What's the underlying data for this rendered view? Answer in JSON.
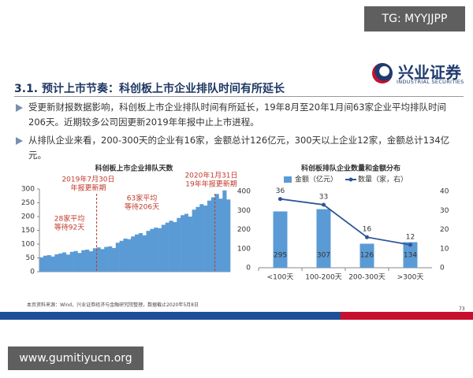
{
  "watermark_top": "TG: MYYJJPP",
  "logo": {
    "name": "兴业证券",
    "subtitle": "INDUSTRIAL SECURITIES"
  },
  "section_title": "3.1. 预计上市节奏：科创板上市企业排队时间有所延长",
  "bullets": [
    "受更新财报数据影响，科创板上市企业排队时间有所延长，19年8月至20年1月间63家企业平均排队时间206天。近期较多公司因更新2019年年报中止上市进程。",
    "从排队企业来看，200-300天的企业有16家，金额总计126亿元，300天以上企业12家，金额总计134亿元。"
  ],
  "chart_data": [
    {
      "type": "bar",
      "title": "科创板上市企业排队天数",
      "color": "#5b9bd5",
      "values": [
        52,
        58,
        60,
        55,
        63,
        66,
        70,
        62,
        72,
        75,
        68,
        78,
        80,
        74,
        85,
        88,
        82,
        90,
        92,
        86,
        105,
        112,
        120,
        118,
        128,
        135,
        140,
        132,
        148,
        155,
        160,
        158,
        170,
        178,
        185,
        180,
        195,
        205,
        210,
        200,
        225,
        235,
        245,
        240,
        258,
        270,
        282,
        265,
        295,
        262
      ],
      "ylim": [
        0,
        300
      ],
      "yticks": [
        0,
        50,
        100,
        150,
        200,
        250,
        300
      ],
      "annotations": [
        {
          "lines": [
            "2019年7月30日",
            "年报更新期"
          ],
          "color": "#c0392b"
        },
        {
          "lines": [
            "2020年1月31日",
            "19年年报更新期"
          ],
          "color": "#c0392b"
        },
        {
          "lines": [
            "63家平均",
            "等待206天"
          ],
          "color": "#c0392b"
        },
        {
          "lines": [
            "28家平均",
            "等待92天"
          ],
          "color": "#c0392b"
        }
      ]
    },
    {
      "type": "combo",
      "title": "科创板排队企业数量和金额分布",
      "categories": [
        "<100天",
        "100-200天",
        "200-300天",
        ">300天"
      ],
      "series": [
        {
          "name": "金额（亿元）",
          "color": "#5b9bd5",
          "values": [
            295,
            307,
            126,
            134
          ]
        },
        {
          "name": "数量（家，右）",
          "color": "#2e5597",
          "values": [
            36,
            33,
            16,
            12
          ],
          "axis": "y2"
        }
      ],
      "ylim": [
        0,
        400
      ],
      "yticks": [
        0,
        100,
        200,
        300,
        400
      ],
      "y2lim": [
        0,
        40
      ],
      "y2ticks": [
        0,
        10,
        20,
        30,
        40
      ]
    }
  ],
  "footnote": "本页资料来源：Wind，兴业证券经济与金融研究院整理，数据截止2020年5月8日",
  "page_number": 73,
  "watermark_bottom": "www.gumitiyucn.org"
}
